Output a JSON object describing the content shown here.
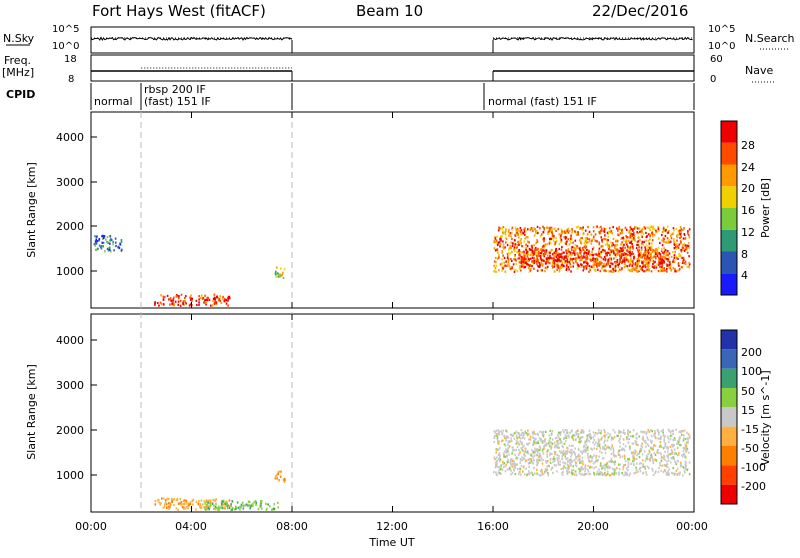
{
  "header": {
    "radar": "Fort Hays West (fitACF)",
    "beam": "Beam 10",
    "date": "22/Dec/2016"
  },
  "panels": {
    "nsky": {
      "label": "N.Sky",
      "ticks": [
        "10^5",
        "10^0"
      ],
      "right_label": "N.Search",
      "right_ticks": [
        "10^5",
        "10^0"
      ]
    },
    "freq": {
      "label_line1": "Freq.",
      "label_line2": "[MHz]",
      "ticks": [
        "18",
        "8"
      ],
      "right_label": "Nave",
      "right_ticks": [
        "60",
        "0"
      ]
    },
    "cpid": {
      "label": "CPID",
      "segments": [
        {
          "text": "normal"
        },
        {
          "text": "rbsp 200 IF"
        },
        {
          "text": "(fast) 151 IF"
        },
        {
          "text": "normal (fast) 151 IF"
        }
      ]
    }
  },
  "power": {
    "ylabel": "Slant Range [km]",
    "yticks": [
      "4000",
      "3000",
      "2000",
      "1000"
    ],
    "colorbar_label": "Power [dB]",
    "colorbar_ticks": [
      "28",
      "24",
      "20",
      "16",
      "12",
      "8",
      "4"
    ],
    "colors": [
      "#1a1aff",
      "#2a55b3",
      "#2e9a73",
      "#7acc3c",
      "#f0d000",
      "#ff9a00",
      "#ff4a00",
      "#ee0000"
    ]
  },
  "velocity": {
    "ylabel": "Slant Range [km]",
    "yticks": [
      "4000",
      "3000",
      "2000",
      "1000"
    ],
    "colorbar_label": "Velocity [m s^-1]",
    "colorbar_ticks": [
      "200",
      "100",
      "50",
      "15",
      "-15",
      "-50",
      "-100",
      "-200"
    ],
    "colors": [
      "#2233aa",
      "#3a66b8",
      "#3aa070",
      "#88d040",
      "#c8c8c8",
      "#ffb040",
      "#ff8000",
      "#ff4000",
      "#ee0000"
    ]
  },
  "xaxis": {
    "ticks": [
      "00:00",
      "04:00",
      "08:00",
      "12:00",
      "16:00",
      "20:00",
      "00:00"
    ],
    "label": "Time UT"
  },
  "chart_data": {
    "type": "heatmap",
    "title": "Fort Hays West (fitACF)",
    "subtitle": "Beam 10 22/Dec/2016",
    "xlabel": "Time UT",
    "ylabel": "Slant Range [km]",
    "xlim": [
      0,
      24
    ],
    "ylim": [
      180,
      4500
    ],
    "data_windows_hours": [
      [
        0,
        8
      ],
      [
        16,
        24
      ]
    ],
    "series": [
      {
        "name": "Power [dB]",
        "range": [
          0,
          32
        ],
        "features": [
          {
            "hours": [
              2.5,
              5.5
            ],
            "range_km": [
              250,
              500
            ],
            "dominant_value": 28
          },
          {
            "hours": [
              16,
              23.8
            ],
            "range_km": [
              1000,
              2000
            ],
            "dominant_value": 24
          },
          {
            "hours": [
              17,
              23
            ],
            "range_km": [
              1100,
              1500
            ],
            "dominant_value": 28
          },
          {
            "hours": [
              0.1,
              1.2
            ],
            "range_km": [
              1450,
              1800
            ],
            "dominant_value": 8
          },
          {
            "hours": [
              7.3,
              7.7
            ],
            "range_km": [
              850,
              1100
            ],
            "dominant_value": 16
          }
        ]
      },
      {
        "name": "Velocity [m s^-1]",
        "range": [
          -250,
          250
        ],
        "features": [
          {
            "hours": [
              16,
              23.8
            ],
            "range_km": [
              1000,
              2000
            ],
            "dominant_value": 0
          },
          {
            "hours": [
              2.5,
              5.5
            ],
            "range_km": [
              250,
              500
            ],
            "dominant_value": -40
          },
          {
            "hours": [
              4.5,
              7.5
            ],
            "range_km": [
              250,
              450
            ],
            "dominant_value": 40
          },
          {
            "hours": [
              7.3,
              7.7
            ],
            "range_km": [
              850,
              1100
            ],
            "dominant_value": -60
          }
        ]
      }
    ]
  }
}
